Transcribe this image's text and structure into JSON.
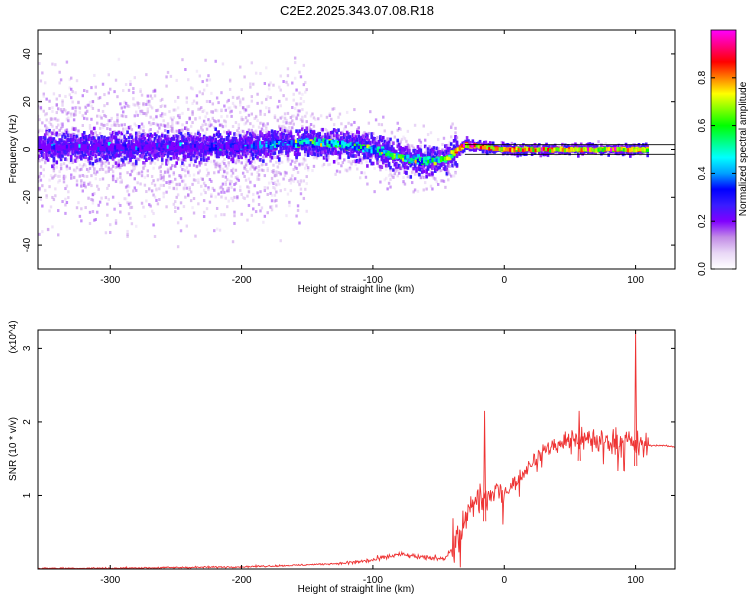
{
  "title": "C2E2.2025.343.07.08.R18",
  "chart_data": [
    {
      "type": "heatmap",
      "xlabel": "Height of straight line (km)",
      "ylabel": "Frequency (Hz)",
      "xlim": [
        -355,
        130
      ],
      "ylim": [
        -50,
        50
      ],
      "x_ticks": [
        -300,
        -200,
        -100,
        0,
        100
      ],
      "y_ticks": [
        -40,
        -20,
        0,
        20,
        40
      ],
      "colorbar": {
        "label": "Normalized spectral amplitude",
        "range": [
          0,
          1
        ],
        "ticks": [
          0.0,
          0.2,
          0.4,
          0.6,
          0.8
        ],
        "tick_labels": [
          "0.0",
          "0.2",
          "0.4",
          "0.6",
          "0.8"
        ],
        "colors": [
          "#ffffff",
          "#e9d8f6",
          "#c28be6",
          "#8000ff",
          "#3a1cff",
          "#0000ff",
          "#00a0ff",
          "#00ffff",
          "#00ff80",
          "#00ff00",
          "#80ff00",
          "#ffff00",
          "#ff8000",
          "#ff0000",
          "#ff0080",
          "#ff00ff"
        ]
      },
      "ridge": {
        "x": [
          -355,
          -300,
          -250,
          -200,
          -180,
          -150,
          -120,
          -100,
          -80,
          -60,
          -45,
          -35,
          -30,
          0,
          50,
          110
        ],
        "y": [
          1,
          1,
          1,
          1,
          2,
          3,
          2,
          0,
          -3,
          -5,
          -4,
          0,
          2,
          0,
          0,
          0
        ],
        "peak_amplitude": [
          0.25,
          0.3,
          0.3,
          0.35,
          0.5,
          0.55,
          0.6,
          0.55,
          0.65,
          0.6,
          0.7,
          0.85,
          0.95,
          0.9,
          0.9,
          0.85
        ]
      },
      "reference_lines_hz": [
        2,
        -2
      ]
    },
    {
      "type": "line",
      "xlabel": "Height of straight line (km)",
      "ylabel": "SNR (10 * v/v)",
      "y_multiplier": "(x10^4)",
      "xlim": [
        -355,
        130
      ],
      "ylim": [
        0,
        3.25
      ],
      "x_ticks": [
        -300,
        -200,
        -100,
        0,
        100
      ],
      "y_ticks": [
        1,
        2,
        3
      ],
      "color": "#ee3333",
      "series": [
        {
          "x": [
            -355,
            -300,
            -250,
            -200,
            -160,
            -120,
            -100,
            -80,
            -60,
            -45,
            -35,
            -30,
            -25,
            -20,
            -15,
            -10,
            0,
            10,
            20,
            30,
            40,
            50,
            60,
            70,
            80,
            90,
            100,
            105,
            108,
            110,
            120,
            130
          ],
          "y": [
            0.01,
            0.01,
            0.02,
            0.03,
            0.05,
            0.08,
            0.12,
            0.2,
            0.15,
            0.15,
            0.4,
            0.6,
            0.85,
            1.0,
            0.95,
            1.0,
            1.05,
            1.2,
            1.45,
            1.6,
            1.7,
            1.75,
            1.78,
            1.76,
            1.74,
            1.75,
            1.7,
            1.65,
            1.7,
            1.68,
            1.68,
            1.66
          ]
        }
      ],
      "spikes": [
        {
          "x": -15,
          "y": 2.15
        },
        {
          "x": 57,
          "y": 2.15
        },
        {
          "x": 100,
          "y": 3.25
        }
      ]
    }
  ]
}
